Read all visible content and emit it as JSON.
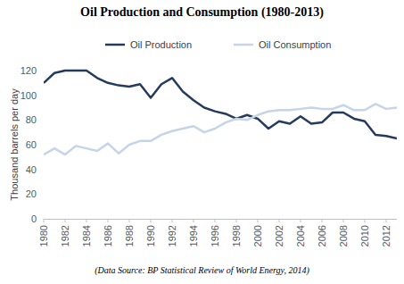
{
  "chart_data": {
    "type": "line",
    "title": "Oil Production and Consumption (1980-2013)",
    "ylabel": "Thousand barrels per day",
    "annotations": [
      "(Data Source: BP Statistical Review of World Energy, 2014)"
    ],
    "x": [
      1980,
      1981,
      1982,
      1983,
      1984,
      1985,
      1986,
      1987,
      1988,
      1989,
      1990,
      1991,
      1992,
      1993,
      1994,
      1995,
      1996,
      1997,
      1998,
      1999,
      2000,
      2001,
      2002,
      2003,
      2004,
      2005,
      2006,
      2007,
      2008,
      2009,
      2010,
      2011,
      2012,
      2013
    ],
    "series": [
      {
        "name": "Oil Production",
        "color": "#253b5c",
        "values": [
          110,
          118,
          120,
          120,
          120,
          114,
          110,
          108,
          107,
          109,
          98,
          109,
          114,
          103,
          96,
          90,
          87,
          85,
          81,
          84,
          81,
          73,
          79,
          77,
          83,
          77,
          78,
          86,
          86,
          81,
          79,
          68,
          67,
          65
        ]
      },
      {
        "name": "Oil Consumption",
        "color": "#c6d4e7",
        "values": [
          52,
          57,
          52,
          59,
          57,
          55,
          61,
          53,
          60,
          63,
          63,
          68,
          71,
          73,
          75,
          70,
          73,
          78,
          81,
          80,
          84,
          87,
          88,
          88,
          89,
          90,
          89,
          89,
          92,
          88,
          88,
          93,
          89,
          90
        ]
      }
    ],
    "xlim": [
      1980,
      2013
    ],
    "xticks": [
      1980,
      1982,
      1984,
      1986,
      1988,
      1990,
      1992,
      1994,
      1996,
      1998,
      2000,
      2002,
      2004,
      2006,
      2008,
      2010,
      2012
    ],
    "ylim": [
      0,
      120
    ],
    "yticks": [
      0,
      20,
      40,
      60,
      80,
      100,
      120
    ],
    "grid": false,
    "legend": "top"
  }
}
